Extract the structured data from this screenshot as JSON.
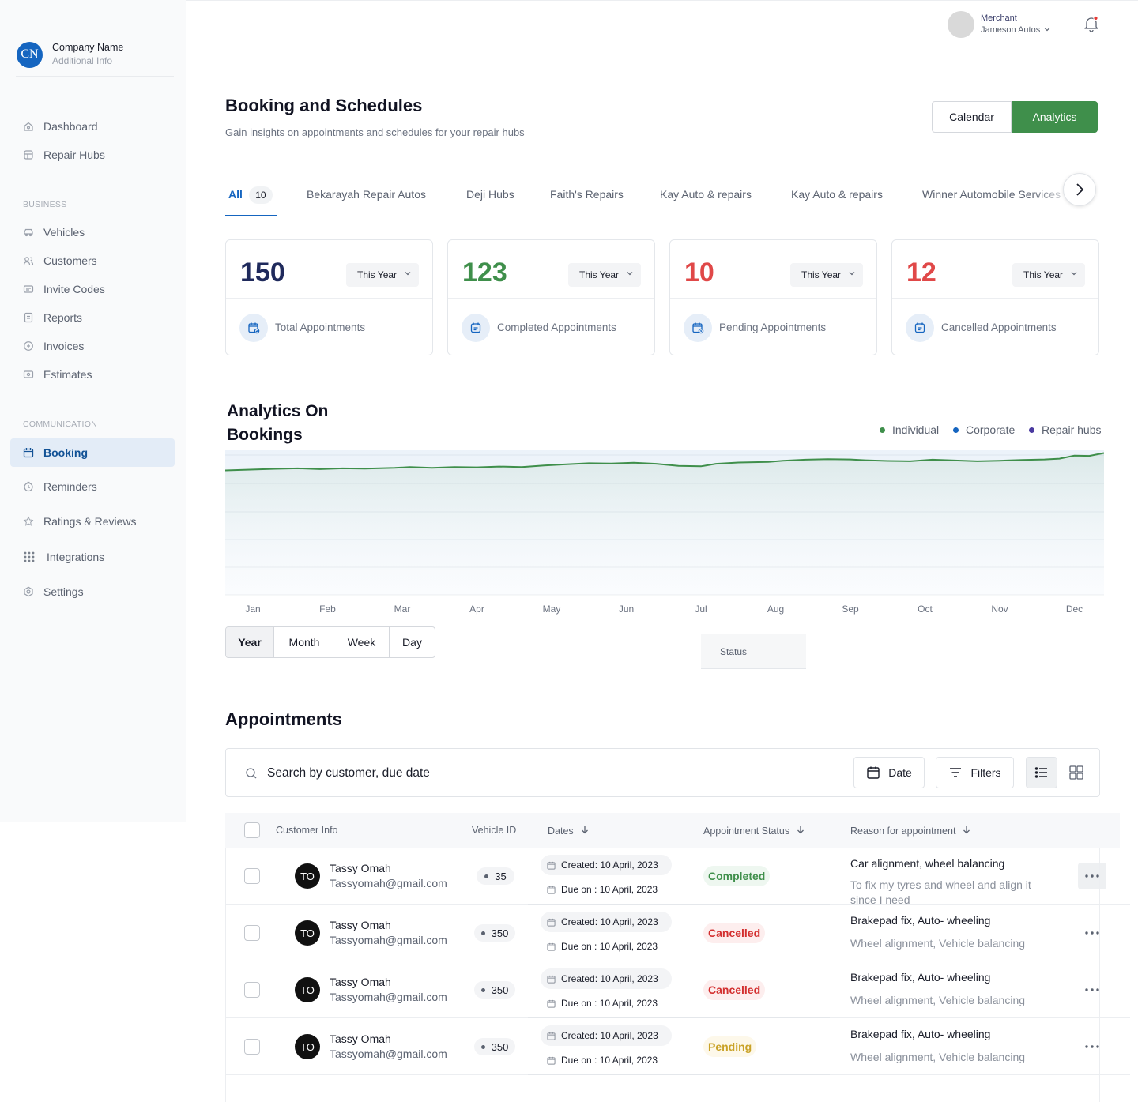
{
  "brand": {
    "initials": "CN",
    "name": "Company Name",
    "info": "Additional Info"
  },
  "sidebar": {
    "main": [
      {
        "label": "Dashboard",
        "icon": "home-icon"
      },
      {
        "label": "Repair Hubs",
        "icon": "store-icon"
      }
    ],
    "business_heading": "BUSINESS",
    "business": [
      {
        "label": "Vehicles",
        "icon": "car-icon"
      },
      {
        "label": "Customers",
        "icon": "users-icon"
      },
      {
        "label": "Invite Codes",
        "icon": "ticket-icon"
      },
      {
        "label": "Reports",
        "icon": "report-icon"
      },
      {
        "label": "Invoices",
        "icon": "invoice-icon"
      },
      {
        "label": "Estimates",
        "icon": "estimate-icon"
      }
    ],
    "communication_heading": "COMMUNICATION",
    "communication": [
      {
        "label": "Booking",
        "icon": "calendar-icon",
        "active": true
      },
      {
        "label": "Reminders",
        "icon": "clock-icon"
      },
      {
        "label": "Ratings & Reviews",
        "icon": "star-icon"
      },
      {
        "label": "Integrations",
        "icon": "grid-icon"
      },
      {
        "label": "Settings",
        "icon": "gear-icon"
      }
    ]
  },
  "topbar": {
    "role": "Merchant",
    "merchant": "Jameson Autos"
  },
  "header": {
    "title": "Booking and Schedules",
    "subtitle": "Gain insights on appointments and schedules for your repair hubs",
    "calendar_label": "Calendar",
    "analytics_label": "Analytics"
  },
  "tabs": {
    "all_label": "All",
    "all_count": "10",
    "items": [
      "Bekarayah Repair Autos",
      "Deji Hubs",
      "Faith's Repairs",
      "Kay Auto & repairs",
      "Kay Auto & repairs",
      "Winner Automobile Services"
    ]
  },
  "stats": [
    {
      "value": "150",
      "period": "This Year",
      "label": "Total Appointments",
      "color": "#1f2a5c"
    },
    {
      "value": "123",
      "period": "This Year",
      "label": "Completed Appointments",
      "color": "#3f8f4b"
    },
    {
      "value": "10",
      "period": "This Year",
      "label": "Pending Appointments",
      "color": "#e04848"
    },
    {
      "value": "12",
      "period": "This Year",
      "label": "Cancelled Appointments",
      "color": "#e04848"
    }
  ],
  "analytics": {
    "title": "Analytics On Bookings",
    "legend": [
      {
        "name": "Individual",
        "color": "#3f8f4b"
      },
      {
        "name": "Corporate",
        "color": "#1565c0"
      },
      {
        "name": "Repair hubs",
        "color": "#4a3aa0"
      }
    ],
    "periods": [
      "Year",
      "Month",
      "Week",
      "Day"
    ],
    "status_label": "Status"
  },
  "chart_data": {
    "type": "area",
    "x": [
      "Jan",
      "Feb",
      "Mar",
      "Apr",
      "May",
      "Jun",
      "Jul",
      "Aug",
      "Sep",
      "Oct",
      "Nov",
      "Dec"
    ],
    "series": [
      {
        "name": "Corporate",
        "color": "#1565c0",
        "values": [
          [
            0,
            68
          ],
          [
            0.3,
            70
          ],
          [
            0.6,
            69.5
          ],
          [
            0.9,
            70
          ],
          [
            1.2,
            69.8
          ],
          [
            1.5,
            70.5
          ],
          [
            1.9,
            70.3
          ],
          [
            2.1,
            71
          ],
          [
            2.4,
            70.4
          ],
          [
            2.7,
            71.3
          ],
          [
            3.0,
            71.8
          ],
          [
            3.3,
            71.5
          ],
          [
            3.6,
            72
          ],
          [
            3.9,
            73
          ],
          [
            4.2,
            73.5
          ],
          [
            4.5,
            73.8
          ],
          [
            4.8,
            73.6
          ],
          [
            5.1,
            74.2
          ],
          [
            5.4,
            73.8
          ],
          [
            5.7,
            72.5
          ],
          [
            6.0,
            72.3
          ],
          [
            6.2,
            73.8
          ],
          [
            6.5,
            74.6
          ],
          [
            6.9,
            75
          ],
          [
            7.1,
            76.2
          ],
          [
            7.4,
            76.8
          ],
          [
            7.7,
            77.3
          ],
          [
            8.0,
            77.1
          ],
          [
            8.2,
            76.6
          ],
          [
            8.5,
            75.5
          ],
          [
            8.8,
            75.4
          ],
          [
            9.1,
            76.7
          ],
          [
            9.4,
            75.8
          ],
          [
            9.7,
            75.3
          ],
          [
            10.0,
            76
          ],
          [
            10.3,
            76.2
          ],
          [
            10.6,
            76.7
          ],
          [
            10.8,
            77.4
          ],
          [
            11.0,
            78.6
          ],
          [
            11.2,
            78.8
          ],
          [
            11.5,
            80.5
          ]
        ]
      },
      {
        "name": "Individual",
        "color": "#3f8f4b",
        "values": [
          [
            0,
            55
          ],
          [
            0.3,
            55.6
          ],
          [
            0.6,
            55.8
          ],
          [
            0.9,
            55.5
          ],
          [
            1.2,
            55.8
          ],
          [
            1.5,
            55.7
          ],
          [
            1.9,
            56
          ],
          [
            2.1,
            56.3
          ],
          [
            2.4,
            56
          ],
          [
            2.7,
            56.3
          ],
          [
            3.0,
            56.2
          ],
          [
            3.3,
            56.5
          ],
          [
            3.6,
            56.3
          ],
          [
            3.9,
            56.9
          ],
          [
            4.2,
            57.4
          ],
          [
            4.5,
            57.8
          ],
          [
            4.8,
            57.7
          ],
          [
            5.1,
            58
          ],
          [
            5.4,
            57.6
          ],
          [
            5.7,
            56.8
          ],
          [
            6.0,
            56.6
          ],
          [
            6.2,
            57.6
          ],
          [
            6.5,
            58.1
          ],
          [
            6.9,
            58.3
          ],
          [
            7.1,
            58.8
          ],
          [
            7.4,
            59.2
          ],
          [
            7.7,
            59.4
          ],
          [
            8.0,
            59.3
          ],
          [
            8.2,
            59
          ],
          [
            8.5,
            58.7
          ],
          [
            8.8,
            58.6
          ],
          [
            9.1,
            59.2
          ],
          [
            9.4,
            58.9
          ],
          [
            9.7,
            58.6
          ],
          [
            10.0,
            58.8
          ],
          [
            10.3,
            59.1
          ],
          [
            10.6,
            59.3
          ],
          [
            10.8,
            59.6
          ],
          [
            11.0,
            60.8
          ],
          [
            11.2,
            60.7
          ],
          [
            11.5,
            61.8
          ]
        ]
      }
    ],
    "title": "Analytics On Bookings",
    "xlabel": "",
    "ylabel": "",
    "grid": true,
    "legend_position": "top-right"
  },
  "appointments": {
    "title": "Appointments",
    "search_placeholder": "Search by customer, due date",
    "date_label": "Date",
    "filters_label": "Filters",
    "columns": [
      "Customer Info",
      "Vehicle ID",
      "Dates",
      "Appointment Status",
      "Reason for appointment"
    ],
    "rows": [
      {
        "initials": "TO",
        "name": "Tassy Omah",
        "email": "Tassyomah@gmail.com",
        "vehicle": "35",
        "created": "Created: 10 April, 2023",
        "due": "Due on : 10 April, 2023",
        "status": "Completed",
        "status_kind": "completed",
        "reason": "Car alignment, wheel balancing",
        "detail": "To fix my tyres and wheel and align it since I need"
      },
      {
        "initials": "TO",
        "name": "Tassy Omah",
        "email": "Tassyomah@gmail.com",
        "vehicle": "350",
        "created": "Created: 10 April, 2023",
        "due": "Due on : 10 April, 2023",
        "status": "Cancelled",
        "status_kind": "cancelled",
        "reason": "Brakepad fix, Auto- wheeling",
        "detail": "Wheel alignment, Vehicle balancing"
      },
      {
        "initials": "TO",
        "name": "Tassy Omah",
        "email": "Tassyomah@gmail.com",
        "vehicle": "350",
        "created": "Created: 10 April, 2023",
        "due": "Due on : 10 April, 2023",
        "status": "Cancelled",
        "status_kind": "cancelled",
        "reason": "Brakepad fix, Auto- wheeling",
        "detail": "Wheel alignment, Vehicle balancing"
      },
      {
        "initials": "TO",
        "name": "Tassy Omah",
        "email": "Tassyomah@gmail.com",
        "vehicle": "350",
        "created": "Created: 10 April, 2023",
        "due": "Due on : 10 April, 2023",
        "status": "Pending",
        "status_kind": "pending",
        "reason": "Brakepad fix, Auto- wheeling",
        "detail": "Wheel alignment, Vehicle balancing"
      }
    ]
  }
}
